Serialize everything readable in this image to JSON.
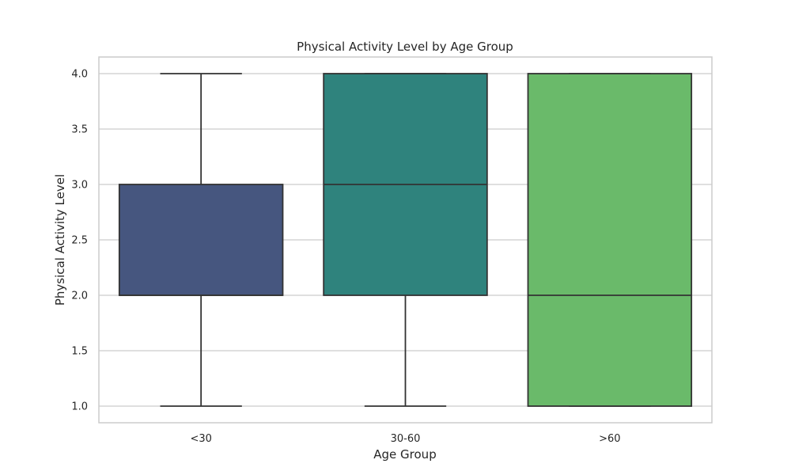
{
  "chart_data": {
    "type": "box",
    "title": "Physical Activity Level by Age Group",
    "xlabel": "Age Group",
    "ylabel": "Physical Activity Level",
    "categories": [
      "<30",
      "30-60",
      ">60"
    ],
    "boxes": [
      {
        "category": "<30",
        "min": 1.0,
        "q1": 2.0,
        "median": 2.0,
        "q3": 3.0,
        "max": 4.0,
        "color": "#46567f"
      },
      {
        "category": "30-60",
        "min": 1.0,
        "q1": 2.0,
        "median": 3.0,
        "q3": 4.0,
        "max": 4.0,
        "color": "#2f837d"
      },
      {
        "category": ">60",
        "min": 1.0,
        "q1": 1.0,
        "median": 2.0,
        "q3": 4.0,
        "max": 4.0,
        "color": "#6aba6a"
      }
    ],
    "ylim": [
      0.85,
      4.15
    ],
    "yticks": [
      "1.0",
      "1.5",
      "2.0",
      "2.5",
      "3.0",
      "3.5",
      "4.0"
    ],
    "grid": true
  }
}
